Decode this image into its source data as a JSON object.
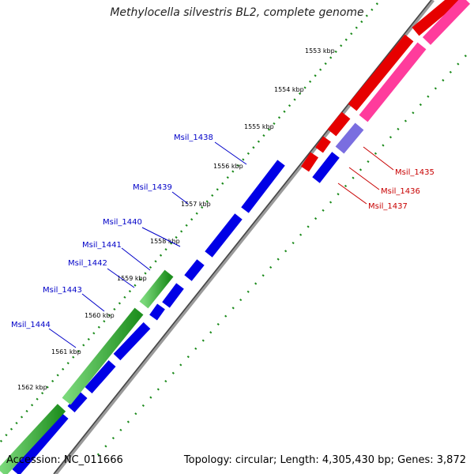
{
  "title": "Methylocella silvestris BL2, complete genome",
  "footer": {
    "accession": "Accession: NC_011666",
    "topology": "Topology: circular; Length: 4,305,430 bp; Genes: 3,872"
  },
  "kbp_ticks": [
    "1553 kbp",
    "1554 kbp",
    "1555 kbp",
    "1556 kbp",
    "1557 kbp",
    "1558 kbp",
    "1559 kbp",
    "1560 kbp",
    "1561 kbp",
    "1562 kbp"
  ],
  "genes_left": [
    "Msil_1438",
    "Msil_1439",
    "Msil_1440",
    "Msil_1441",
    "Msil_1442",
    "Msil_1443",
    "Msil_1444"
  ],
  "genes_right": [
    "Msil_1435",
    "Msil_1436",
    "Msil_1437"
  ],
  "colors": {
    "blue": "#0000e6",
    "red": "#e60000",
    "pink": "#ff3c9c",
    "green": "#36b236",
    "lavender": "#7a6ee0",
    "dots": "#1a8a1a"
  }
}
